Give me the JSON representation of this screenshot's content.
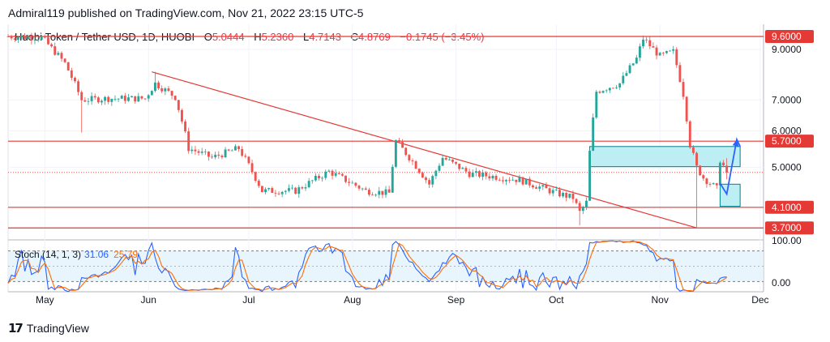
{
  "header": {
    "published": "Admiral119 published on TradingView.com, Nov 21, 2022 23:15 UTC-5"
  },
  "symbol": {
    "name": "Huobi Token / Tether USD, 1D, HUOBI",
    "open_label": "O",
    "open": "5.0444",
    "high_label": "H",
    "high": "5.2360",
    "low_label": "L",
    "low": "4.7143",
    "close_label": "C",
    "close": "4.8769",
    "change": "−0.1745 (−3.45%)"
  },
  "axis": {
    "currency": "USDT",
    "price_ticks": [
      "9.0000",
      "7.0000",
      "6.0000",
      "5.0000",
      "4.1000"
    ],
    "stoch_ticks": [
      "100.00",
      "0.00"
    ],
    "months": [
      "May",
      "Jun",
      "Jul",
      "Aug",
      "Sep",
      "Oct",
      "Nov",
      "Dec"
    ]
  },
  "price_tags": {
    "level_1": "9.6000",
    "level_2": "5.7000",
    "level_3": "4.1000",
    "level_4": "3.7000"
  },
  "stoch": {
    "title": "Stoch (14, 1, 3)",
    "k_value": "31.06",
    "d_value": "25.79"
  },
  "footer": {
    "brand": "TradingView"
  },
  "colors": {
    "up": "#26a69a",
    "down": "#ef5350",
    "level_line": "#e53935",
    "zone_fill": "#b2ebf2",
    "zone_stroke": "#00838f",
    "projection": "#2962ff",
    "stoch_k": "#2962ff",
    "stoch_d": "#ff6d00"
  },
  "chart_data": {
    "type": "candlestick",
    "scale": "log",
    "ylim": [
      3.5,
      10.2
    ],
    "levels": [
      9.6,
      5.7,
      4.1,
      3.7
    ],
    "zones": [
      {
        "from": "2022-10-11",
        "to": "2022-11-25",
        "low": 5.02,
        "high": 5.55
      },
      {
        "from": "2022-11-19",
        "to": "2022-11-25",
        "low": 4.12,
        "high": 4.6
      }
    ],
    "trendline": {
      "start": [
        "2022-06-02",
        8.05
      ],
      "end": [
        "2022-11-12",
        3.7
      ]
    },
    "projection": [
      [
        "2022-11-19",
        4.62
      ],
      [
        "2022-11-21",
        4.38
      ],
      [
        "2022-11-24",
        5.75
      ],
      [
        "2022-11-25",
        5.55
      ]
    ],
    "keypoints": [
      [
        "2022-04-20",
        9.6
      ],
      [
        "2022-04-30",
        9.55
      ],
      [
        "2022-05-07",
        8.4
      ],
      [
        "2022-05-12",
        7.0
      ],
      [
        "2022-05-20",
        7.05
      ],
      [
        "2022-05-31",
        7.05
      ],
      [
        "2022-06-03",
        7.6
      ],
      [
        "2022-06-09",
        7.1
      ],
      [
        "2022-06-13",
        5.5
      ],
      [
        "2022-06-20",
        5.25
      ],
      [
        "2022-06-28",
        5.5
      ],
      [
        "2022-07-05",
        4.45
      ],
      [
        "2022-07-15",
        4.45
      ],
      [
        "2022-07-25",
        4.9
      ],
      [
        "2022-08-05",
        4.45
      ],
      [
        "2022-08-12",
        4.4
      ],
      [
        "2022-08-14",
        5.7
      ],
      [
        "2022-08-24",
        4.6
      ],
      [
        "2022-08-28",
        5.25
      ],
      [
        "2022-09-05",
        4.85
      ],
      [
        "2022-09-20",
        4.7
      ],
      [
        "2022-10-01",
        4.4
      ],
      [
        "2022-10-06",
        4.3
      ],
      [
        "2022-10-08",
        4.0
      ],
      [
        "2022-10-10",
        4.2
      ],
      [
        "2022-10-11",
        5.4
      ],
      [
        "2022-10-13",
        7.3
      ],
      [
        "2022-10-20",
        7.6
      ],
      [
        "2022-10-25",
        8.6
      ],
      [
        "2022-10-27",
        9.5
      ],
      [
        "2022-11-01",
        8.7
      ],
      [
        "2022-11-05",
        8.9
      ],
      [
        "2022-11-08",
        7.2
      ],
      [
        "2022-11-10",
        5.6
      ],
      [
        "2022-11-12",
        5.0
      ],
      [
        "2022-11-14",
        4.75
      ],
      [
        "2022-11-18",
        4.5
      ],
      [
        "2022-11-19",
        5.2
      ],
      [
        "2022-11-21",
        4.88
      ]
    ],
    "stoch_ylim": [
      0,
      100
    ],
    "stoch_bands": [
      20,
      80
    ]
  }
}
